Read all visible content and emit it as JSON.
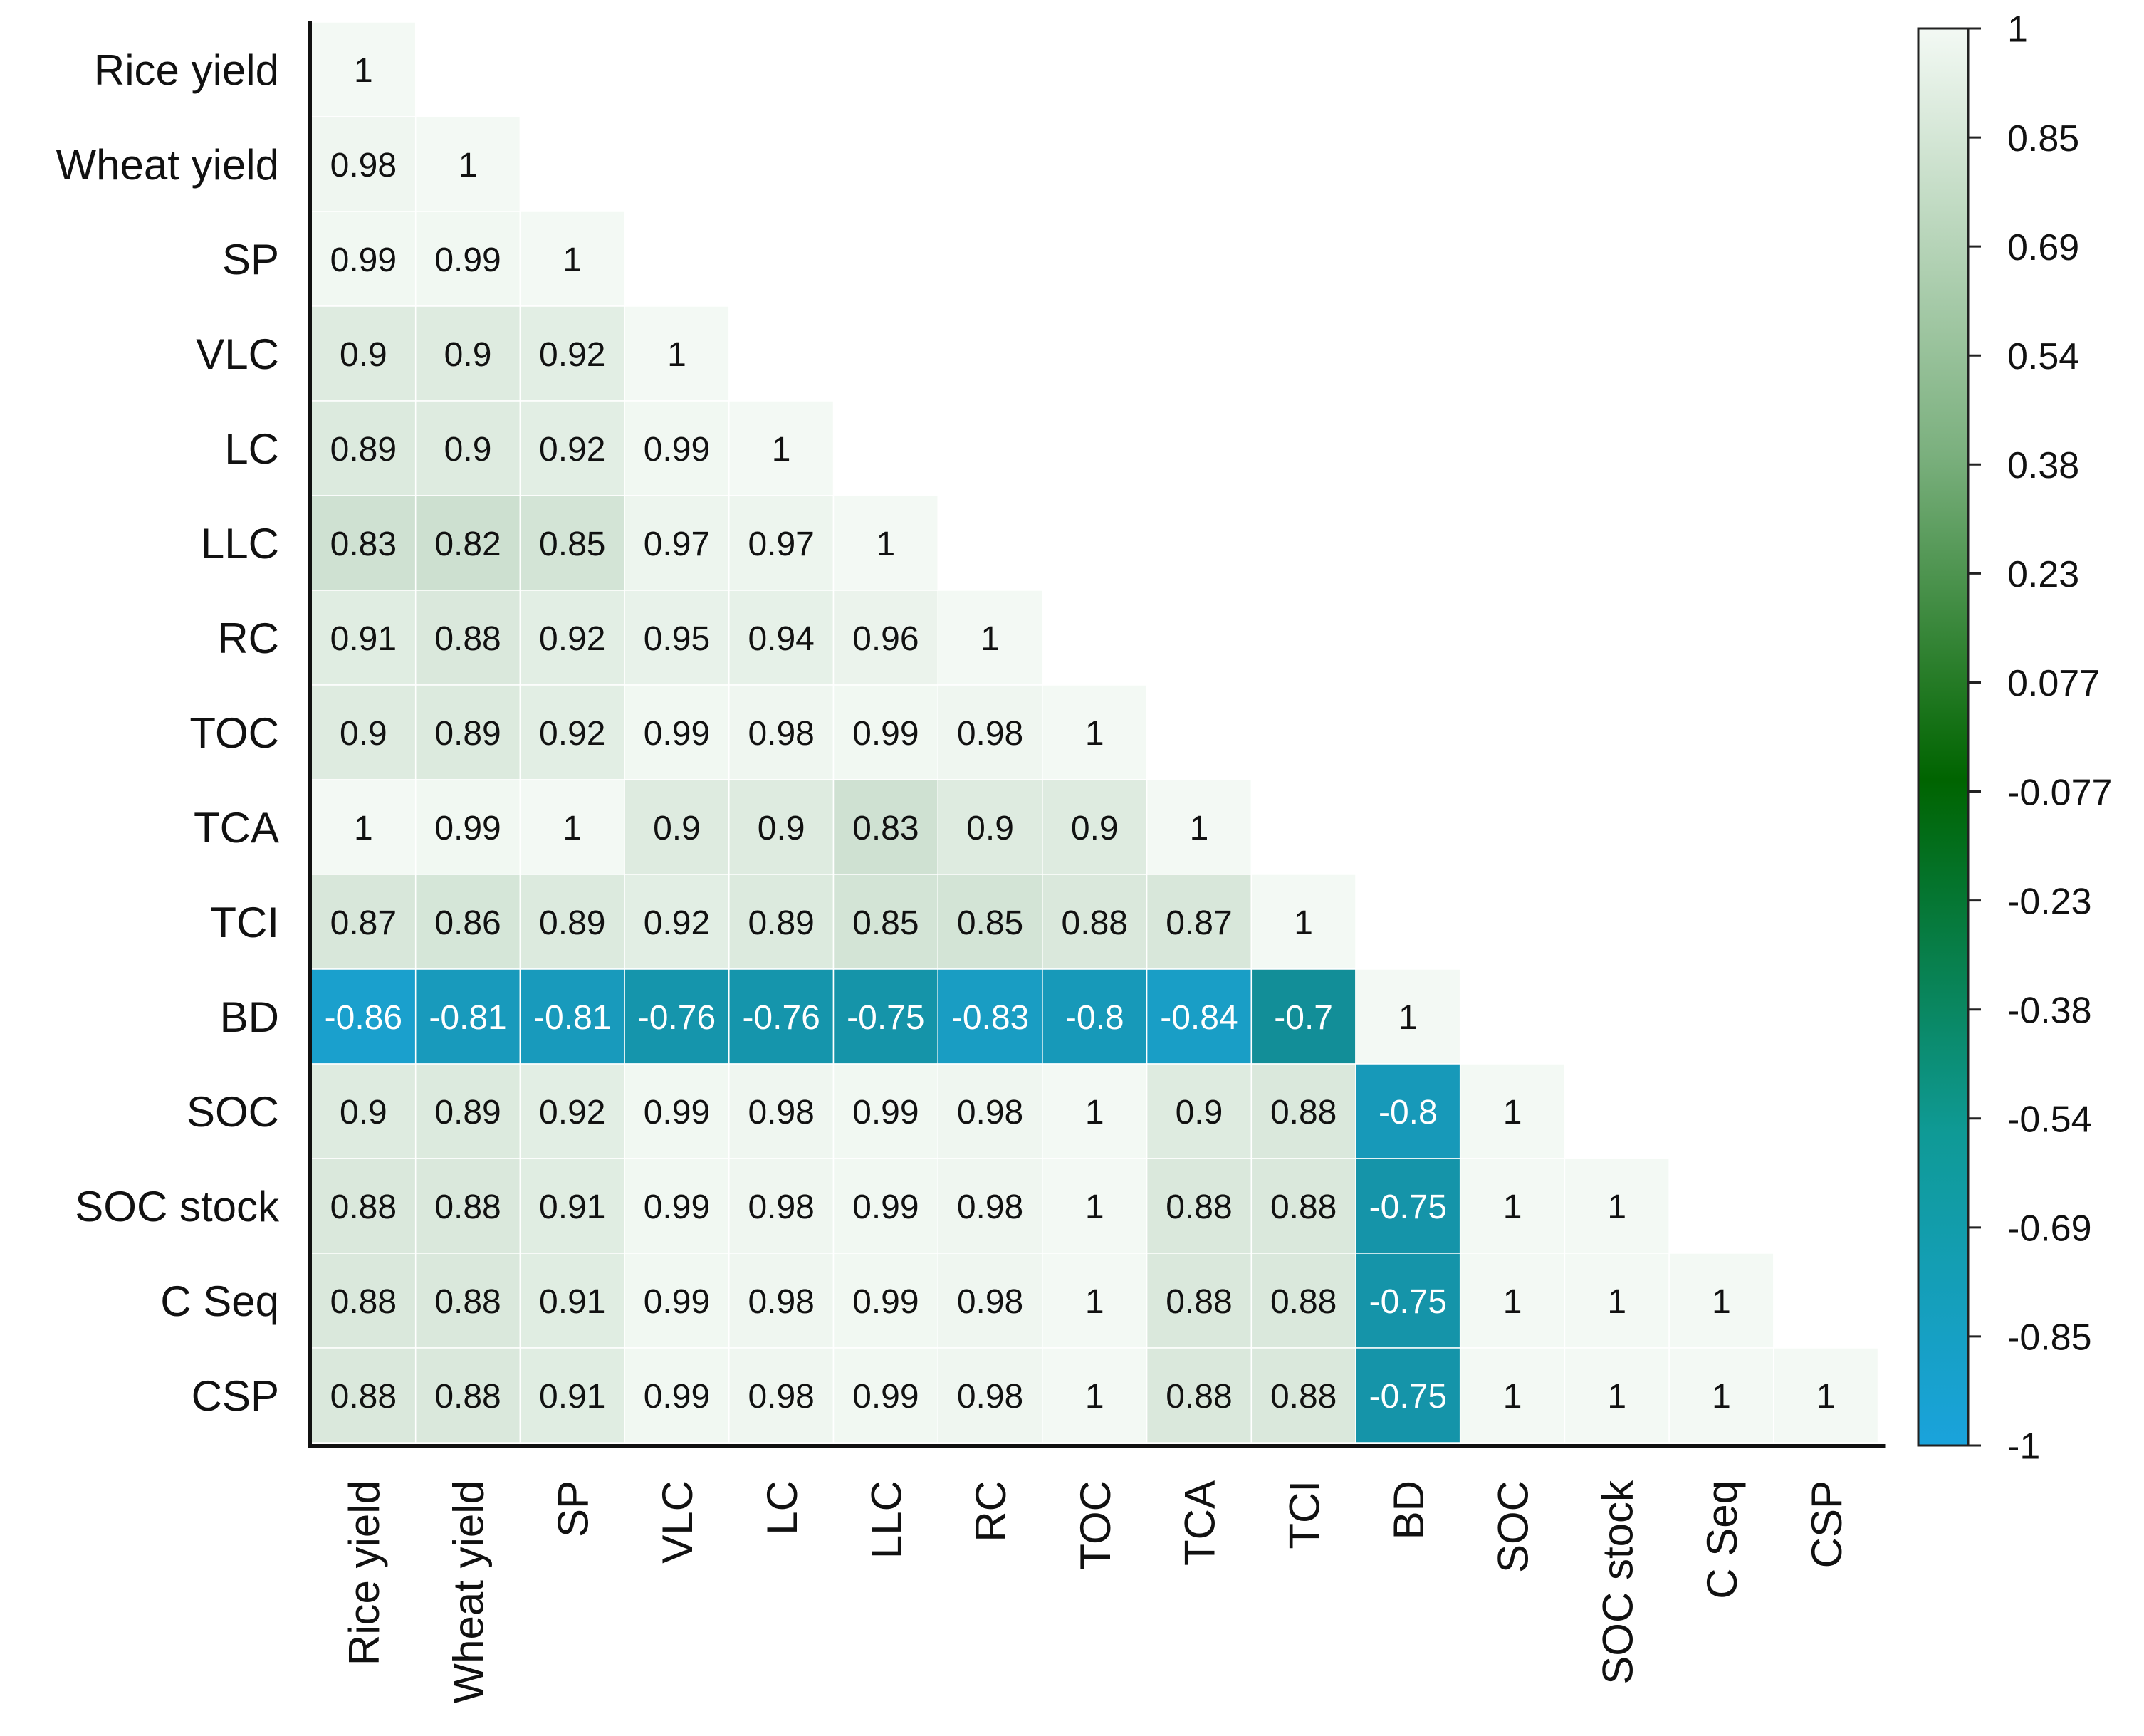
{
  "chart_data": {
    "type": "heatmap",
    "title": "",
    "xlabel": "",
    "ylabel": "",
    "variables": [
      "Rice yield",
      "Wheat yield",
      "SP",
      "VLC",
      "LC",
      "LLC",
      "RC",
      "TOC",
      "TCA",
      "TCI",
      "BD",
      "SOC",
      "SOC stock",
      "C Seq",
      "CSP"
    ],
    "matrix": [
      [
        "1"
      ],
      [
        "0.98",
        "1"
      ],
      [
        "0.99",
        "0.99",
        "1"
      ],
      [
        "0.9",
        "0.9",
        "0.92",
        "1"
      ],
      [
        "0.89",
        "0.9",
        "0.92",
        "0.99",
        "1"
      ],
      [
        "0.83",
        "0.82",
        "0.85",
        "0.97",
        "0.97",
        "1"
      ],
      [
        "0.91",
        "0.88",
        "0.92",
        "0.95",
        "0.94",
        "0.96",
        "1"
      ],
      [
        "0.9",
        "0.89",
        "0.92",
        "0.99",
        "0.98",
        "0.99",
        "0.98",
        "1"
      ],
      [
        "1",
        "0.99",
        "1",
        "0.9",
        "0.9",
        "0.83",
        "0.9",
        "0.9",
        "1"
      ],
      [
        "0.87",
        "0.86",
        "0.89",
        "0.92",
        "0.89",
        "0.85",
        "0.85",
        "0.88",
        "0.87",
        "1"
      ],
      [
        "-0.86",
        "-0.81",
        "-0.81",
        "-0.76",
        "-0.76",
        "-0.75",
        "-0.83",
        "-0.8",
        "-0.84",
        "-0.7",
        "1"
      ],
      [
        "0.9",
        "0.89",
        "0.92",
        "0.99",
        "0.98",
        "0.99",
        "0.98",
        "1",
        "0.9",
        "0.88",
        "-0.8",
        "1"
      ],
      [
        "0.88",
        "0.88",
        "0.91",
        "0.99",
        "0.98",
        "0.99",
        "0.98",
        "1",
        "0.88",
        "0.88",
        "-0.75",
        "1",
        "1"
      ],
      [
        "0.88",
        "0.88",
        "0.91",
        "0.99",
        "0.98",
        "0.99",
        "0.98",
        "1",
        "0.88",
        "0.88",
        "-0.75",
        "1",
        "1",
        "1"
      ],
      [
        "0.88",
        "0.88",
        "0.91",
        "0.99",
        "0.98",
        "0.99",
        "0.98",
        "1",
        "0.88",
        "0.88",
        "-0.75",
        "1",
        "1",
        "1",
        "1"
      ]
    ],
    "value_range": [
      -1,
      1
    ],
    "colorbar": {
      "ticks": [
        "1",
        "0.85",
        "0.69",
        "0.54",
        "0.38",
        "0.23",
        "0.077",
        "-0.077",
        "-0.23",
        "-0.38",
        "-0.54",
        "-0.69",
        "-0.85",
        "-1"
      ],
      "colors": [
        "#1aa3dc",
        "#0f9a96",
        "#006400",
        "#f3f9f4"
      ],
      "stops": [
        -1,
        -0.6,
        -0.1,
        1
      ]
    },
    "legend_position": "right",
    "grid": true
  }
}
